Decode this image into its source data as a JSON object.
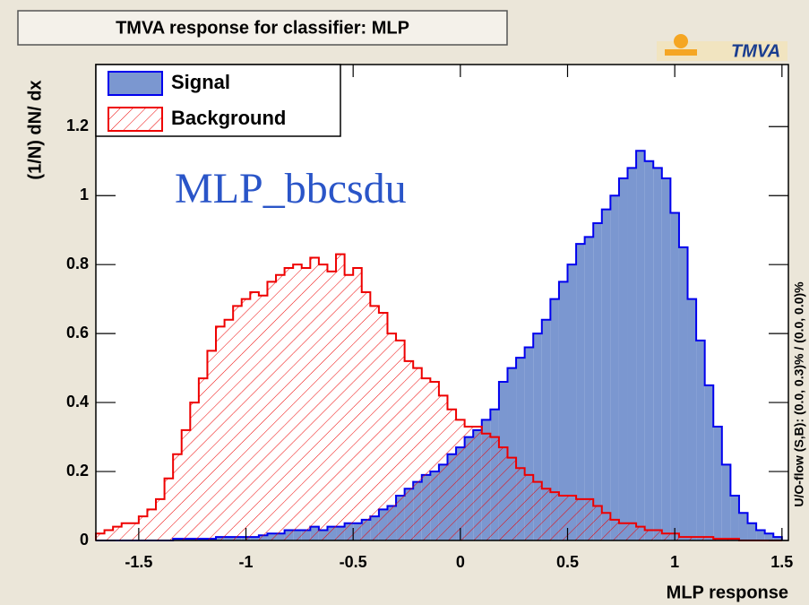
{
  "chart_data": {
    "type": "histogram",
    "title": "TMVA response for classifier: MLP",
    "logo": "TMVA",
    "annotation": "MLP_bbcsdu",
    "side_note": "U/O-flow (S,B): (0.0, 0.3)% / (0.0, 0.0)%",
    "xlabel": "MLP response",
    "ylabel": "(1/N) dN/ dx",
    "bins": [
      -1.7,
      -1.66,
      -1.62,
      -1.58,
      -1.54,
      -1.5,
      -1.46,
      -1.42,
      -1.38,
      -1.34,
      -1.3,
      -1.26,
      -1.22,
      -1.18,
      -1.14,
      -1.1,
      -1.06,
      -1.02,
      -0.98,
      -0.94,
      -0.9,
      -0.86,
      -0.82,
      -0.78,
      -0.74,
      -0.7,
      -0.66,
      -0.62,
      -0.58,
      -0.54,
      -0.5,
      -0.46,
      -0.42,
      -0.38,
      -0.34,
      -0.3,
      -0.26,
      -0.22,
      -0.18,
      -0.14,
      -0.1,
      -0.06,
      -0.02,
      0.02,
      0.06,
      0.1,
      0.14,
      0.18,
      0.22,
      0.26,
      0.3,
      0.34,
      0.38,
      0.42,
      0.46,
      0.5,
      0.54,
      0.58,
      0.62,
      0.66,
      0.7,
      0.74,
      0.78,
      0.82,
      0.86,
      0.9,
      0.94,
      0.98,
      1.02,
      1.06,
      1.1,
      1.14,
      1.18,
      1.22,
      1.26,
      1.3,
      1.34,
      1.38,
      1.42,
      1.46,
      1.5
    ],
    "series": [
      {
        "name": "Signal",
        "color": "#0000ee",
        "fill": "#7b97d0",
        "values": [
          0,
          0,
          0,
          0,
          0,
          0,
          0,
          0,
          0,
          0.005,
          0.005,
          0.005,
          0.005,
          0.005,
          0.01,
          0.01,
          0.01,
          0.01,
          0.01,
          0.015,
          0.02,
          0.02,
          0.03,
          0.03,
          0.03,
          0.04,
          0.03,
          0.04,
          0.04,
          0.05,
          0.05,
          0.06,
          0.07,
          0.09,
          0.1,
          0.13,
          0.15,
          0.17,
          0.19,
          0.2,
          0.22,
          0.25,
          0.27,
          0.3,
          0.32,
          0.35,
          0.38,
          0.46,
          0.5,
          0.53,
          0.56,
          0.6,
          0.64,
          0.7,
          0.75,
          0.8,
          0.86,
          0.88,
          0.92,
          0.96,
          1.0,
          1.05,
          1.08,
          1.13,
          1.1,
          1.08,
          1.05,
          0.95,
          0.85,
          0.7,
          0.58,
          0.45,
          0.33,
          0.22,
          0.13,
          0.08,
          0.05,
          0.03,
          0.02,
          0.01
        ]
      },
      {
        "name": "Background",
        "color": "#ee0000",
        "fill": "hatch",
        "values": [
          0.02,
          0.03,
          0.04,
          0.05,
          0.05,
          0.07,
          0.09,
          0.12,
          0.18,
          0.25,
          0.32,
          0.4,
          0.47,
          0.55,
          0.62,
          0.64,
          0.68,
          0.7,
          0.72,
          0.71,
          0.75,
          0.77,
          0.79,
          0.8,
          0.79,
          0.82,
          0.8,
          0.78,
          0.83,
          0.77,
          0.79,
          0.72,
          0.68,
          0.66,
          0.6,
          0.58,
          0.52,
          0.5,
          0.47,
          0.46,
          0.42,
          0.38,
          0.35,
          0.33,
          0.33,
          0.31,
          0.3,
          0.27,
          0.24,
          0.21,
          0.19,
          0.17,
          0.15,
          0.14,
          0.13,
          0.13,
          0.12,
          0.12,
          0.1,
          0.08,
          0.06,
          0.05,
          0.05,
          0.04,
          0.03,
          0.03,
          0.02,
          0.02,
          0.01,
          0.01,
          0.01,
          0.01,
          0.005,
          0.005,
          0.005,
          0,
          0,
          0,
          0,
          0
        ]
      }
    ],
    "xlim": [
      -1.7,
      1.53
    ],
    "ylim": [
      0,
      1.38
    ],
    "xticks": [
      -1.5,
      -1,
      -0.5,
      0,
      0.5,
      1,
      1.5
    ],
    "yticks": [
      0,
      0.2,
      0.4,
      0.6,
      0.8,
      1,
      1.2
    ],
    "legend": "upper left"
  }
}
